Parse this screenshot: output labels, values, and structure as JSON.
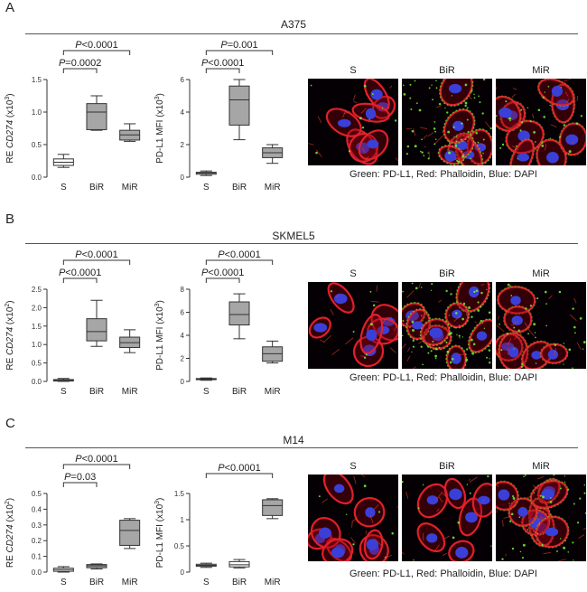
{
  "panels": [
    {
      "letter": "A",
      "cell_line": "A375",
      "caption": "Green: PD-L1, Red: Phalloidin, Blue: DAPI",
      "conditions": [
        "S",
        "BiR",
        "MiR"
      ],
      "charts": [
        {
          "type": "box",
          "ylabel_prefix": "RE ",
          "ylabel_gene": "CD274",
          "ylabel_suffix": " (x10",
          "ylabel_exp": "3",
          "ylabel_close": ")",
          "ylim": [
            0,
            1.5
          ],
          "yticks": [
            "0.0",
            "0.5",
            "1.0",
            "1.5"
          ],
          "ytick_values": [
            0,
            0.5,
            1.0,
            1.5
          ],
          "boxes": [
            {
              "category": "S",
              "min": 0.15,
              "q1": 0.18,
              "median": 0.23,
              "q3": 0.28,
              "max": 0.35,
              "color": "#ffffff"
            },
            {
              "category": "BiR",
              "min": 0.72,
              "q1": 0.73,
              "median": 1.0,
              "q3": 1.13,
              "max": 1.25,
              "color": "#a6a6a6"
            },
            {
              "category": "MiR",
              "min": 0.55,
              "q1": 0.57,
              "median": 0.65,
              "q3": 0.72,
              "max": 0.82,
              "color": "#a6a6a6"
            }
          ],
          "brackets": [
            {
              "from": "S",
              "to": "BiR",
              "p_letter": "P",
              "p_text": "=0.0002"
            },
            {
              "from": "S",
              "to": "MiR",
              "p_letter": "P",
              "p_text": "<0.0001"
            }
          ]
        },
        {
          "type": "box",
          "ylabel_prefix": "PD-L1 MFI",
          "ylabel_gene": "",
          "ylabel_suffix": " (x10",
          "ylabel_exp": "3",
          "ylabel_close": ")",
          "ylim": [
            0,
            6
          ],
          "yticks": [
            "0",
            "2",
            "4",
            "6"
          ],
          "ytick_values": [
            0,
            2,
            4,
            6
          ],
          "boxes": [
            {
              "category": "S",
              "min": 0.1,
              "q1": 0.18,
              "median": 0.24,
              "q3": 0.3,
              "max": 0.38,
              "color": "#ffffff"
            },
            {
              "category": "BiR",
              "min": 2.3,
              "q1": 3.2,
              "median": 4.75,
              "q3": 5.6,
              "max": 6.0,
              "color": "#a6a6a6"
            },
            {
              "category": "MiR",
              "min": 0.85,
              "q1": 1.2,
              "median": 1.5,
              "q3": 1.8,
              "max": 2.0,
              "color": "#a6a6a6"
            }
          ],
          "brackets": [
            {
              "from": "S",
              "to": "BiR",
              "p_letter": "P",
              "p_text": "<0.0001"
            },
            {
              "from": "S",
              "to": "MiR",
              "p_letter": "P",
              "p_text": "=0.001"
            }
          ]
        }
      ]
    },
    {
      "letter": "B",
      "cell_line": "SKMEL5",
      "caption": "Green: PD-L1, Red: Phalloidin, Blue: DAPI",
      "conditions": [
        "S",
        "BiR",
        "MiR"
      ],
      "charts": [
        {
          "type": "box",
          "ylabel_prefix": "RE ",
          "ylabel_gene": "CD274",
          "ylabel_suffix": " (x10",
          "ylabel_exp": "2",
          "ylabel_close": ")",
          "ylim": [
            0,
            2.5
          ],
          "yticks": [
            "0.0",
            "0.5",
            "1.0",
            "1.5",
            "2.0",
            "2.5"
          ],
          "ytick_values": [
            0,
            0.5,
            1.0,
            1.5,
            2.0,
            2.5
          ],
          "boxes": [
            {
              "category": "S",
              "min": 0.0,
              "q1": 0.01,
              "median": 0.03,
              "q3": 0.05,
              "max": 0.08,
              "color": "#ffffff"
            },
            {
              "category": "BiR",
              "min": 0.95,
              "q1": 1.1,
              "median": 1.35,
              "q3": 1.7,
              "max": 2.2,
              "color": "#a6a6a6"
            },
            {
              "category": "MiR",
              "min": 0.78,
              "q1": 0.92,
              "median": 1.05,
              "q3": 1.2,
              "max": 1.4,
              "color": "#a6a6a6"
            }
          ],
          "brackets": [
            {
              "from": "S",
              "to": "BiR",
              "p_letter": "P",
              "p_text": "<0.0001"
            },
            {
              "from": "S",
              "to": "MiR",
              "p_letter": "P",
              "p_text": "<0.0001"
            }
          ]
        },
        {
          "type": "box",
          "ylabel_prefix": "PD-L1 MFI",
          "ylabel_gene": "",
          "ylabel_suffix": " (x10",
          "ylabel_exp": "3",
          "ylabel_close": ")",
          "ylim": [
            0,
            8
          ],
          "yticks": [
            "0",
            "2",
            "4",
            "6",
            "8"
          ],
          "ytick_values": [
            0,
            2,
            4,
            6,
            8
          ],
          "boxes": [
            {
              "category": "S",
              "min": 0.1,
              "q1": 0.15,
              "median": 0.2,
              "q3": 0.25,
              "max": 0.3,
              "color": "#ffffff"
            },
            {
              "category": "BiR",
              "min": 3.7,
              "q1": 4.9,
              "median": 5.8,
              "q3": 6.9,
              "max": 7.6,
              "color": "#a6a6a6"
            },
            {
              "category": "MiR",
              "min": 1.6,
              "q1": 1.75,
              "median": 2.4,
              "q3": 3.0,
              "max": 3.5,
              "color": "#a6a6a6"
            }
          ],
          "brackets": [
            {
              "from": "S",
              "to": "BiR",
              "p_letter": "P",
              "p_text": "<0.0001"
            },
            {
              "from": "S",
              "to": "MiR",
              "p_letter": "P",
              "p_text": "<0.0001"
            }
          ]
        }
      ]
    },
    {
      "letter": "C",
      "cell_line": "M14",
      "caption": "Green: PD-L1, Red: Phalloidin, Blue: DAPI",
      "conditions": [
        "S",
        "BiR",
        "MiR"
      ],
      "charts": [
        {
          "type": "box",
          "ylabel_prefix": "RE ",
          "ylabel_gene": "CD274",
          "ylabel_suffix": " (x10",
          "ylabel_exp": "2",
          "ylabel_close": ")",
          "ylim": [
            0,
            0.5
          ],
          "yticks": [
            "0.0",
            "0.1",
            "0.2",
            "0.3",
            "0.4",
            "0.5"
          ],
          "ytick_values": [
            0,
            0.1,
            0.2,
            0.3,
            0.4,
            0.5
          ],
          "boxes": [
            {
              "category": "S",
              "min": 0.0,
              "q1": 0.005,
              "median": 0.015,
              "q3": 0.025,
              "max": 0.035,
              "color": "#ffffff"
            },
            {
              "category": "BiR",
              "min": 0.02,
              "q1": 0.028,
              "median": 0.04,
              "q3": 0.048,
              "max": 0.052,
              "color": "#a6a6a6"
            },
            {
              "category": "MiR",
              "min": 0.15,
              "q1": 0.17,
              "median": 0.265,
              "q3": 0.33,
              "max": 0.34,
              "color": "#a6a6a6"
            }
          ],
          "brackets": [
            {
              "from": "S",
              "to": "BiR",
              "p_letter": "P",
              "p_text": "=0.03"
            },
            {
              "from": "S",
              "to": "MiR",
              "p_letter": "P",
              "p_text": "<0.0001"
            }
          ]
        },
        {
          "type": "box",
          "ylabel_prefix": "PD-L1 MFI",
          "ylabel_gene": "",
          "ylabel_suffix": " (x10",
          "ylabel_exp": "3",
          "ylabel_close": ")",
          "ylim": [
            0,
            1.5
          ],
          "yticks": [
            "0",
            "0.5",
            "1",
            "1.5"
          ],
          "ytick_values": [
            0,
            0.5,
            1,
            1.5
          ],
          "boxes": [
            {
              "category": "S",
              "min": 0.09,
              "q1": 0.11,
              "median": 0.13,
              "q3": 0.15,
              "max": 0.17,
              "color": "#ffffff"
            },
            {
              "category": "BiR",
              "min": 0.08,
              "q1": 0.1,
              "median": 0.14,
              "q3": 0.2,
              "max": 0.24,
              "color": "#ffffff"
            },
            {
              "category": "MiR",
              "min": 1.02,
              "q1": 1.08,
              "median": 1.27,
              "q3": 1.38,
              "max": 1.4,
              "color": "#a6a6a6"
            }
          ],
          "brackets": [
            {
              "from": "S",
              "to": "MiR",
              "p_letter": "P",
              "p_text": "<0.0001"
            }
          ]
        }
      ]
    }
  ]
}
